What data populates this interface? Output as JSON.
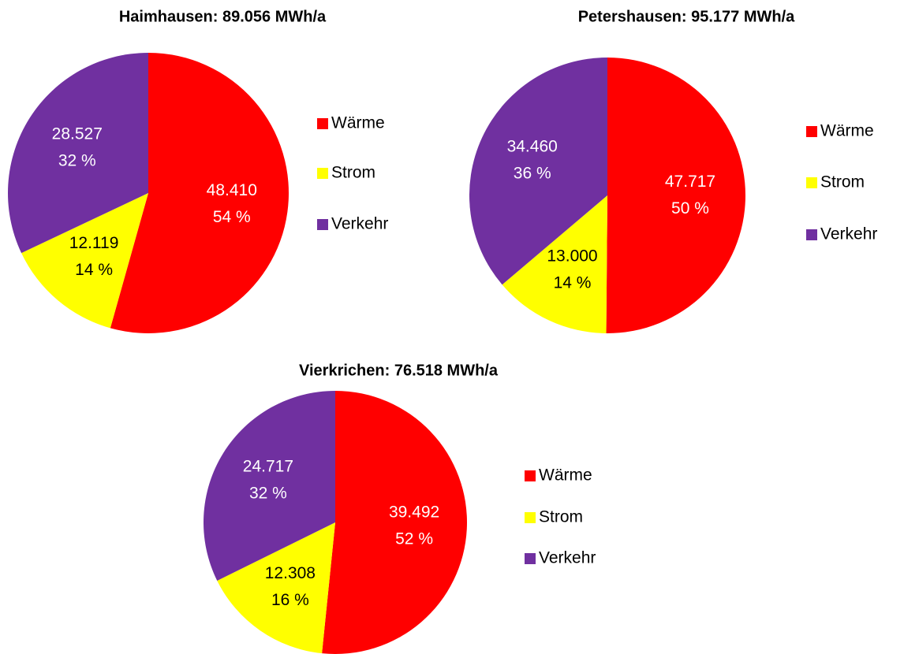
{
  "chart_data": [
    {
      "type": "pie",
      "title": "Haimhausen: 89.056 MWh/a",
      "categories": [
        "Wärme",
        "Strom",
        "Verkehr"
      ],
      "colors": [
        "#ff0000",
        "#ffff00",
        "#7030a0"
      ],
      "values": [
        48410,
        12119,
        28527
      ],
      "value_labels": [
        "48.410",
        "12.119",
        "28.527"
      ],
      "percent_labels": [
        "54 %",
        "14 %",
        "32 %"
      ]
    },
    {
      "type": "pie",
      "title": "Petershausen:  95.177 MWh/a",
      "categories": [
        "Wärme",
        "Strom",
        "Verkehr"
      ],
      "colors": [
        "#ff0000",
        "#ffff00",
        "#7030a0"
      ],
      "values": [
        47717,
        13000,
        34460
      ],
      "value_labels": [
        "47.717",
        "13.000",
        "34.460"
      ],
      "percent_labels": [
        "50 %",
        "14 %",
        "36 %"
      ]
    },
    {
      "type": "pie",
      "title": "Vierkrichen: 76.518 MWh/a",
      "categories": [
        "Wärme",
        "Strom",
        "Verkehr"
      ],
      "colors": [
        "#ff0000",
        "#ffff00",
        "#7030a0"
      ],
      "values": [
        39492,
        12308,
        24717
      ],
      "value_labels": [
        "39.492",
        "12.308",
        "24.717"
      ],
      "percent_labels": [
        "52 %",
        "16 %",
        "32 %"
      ]
    }
  ]
}
